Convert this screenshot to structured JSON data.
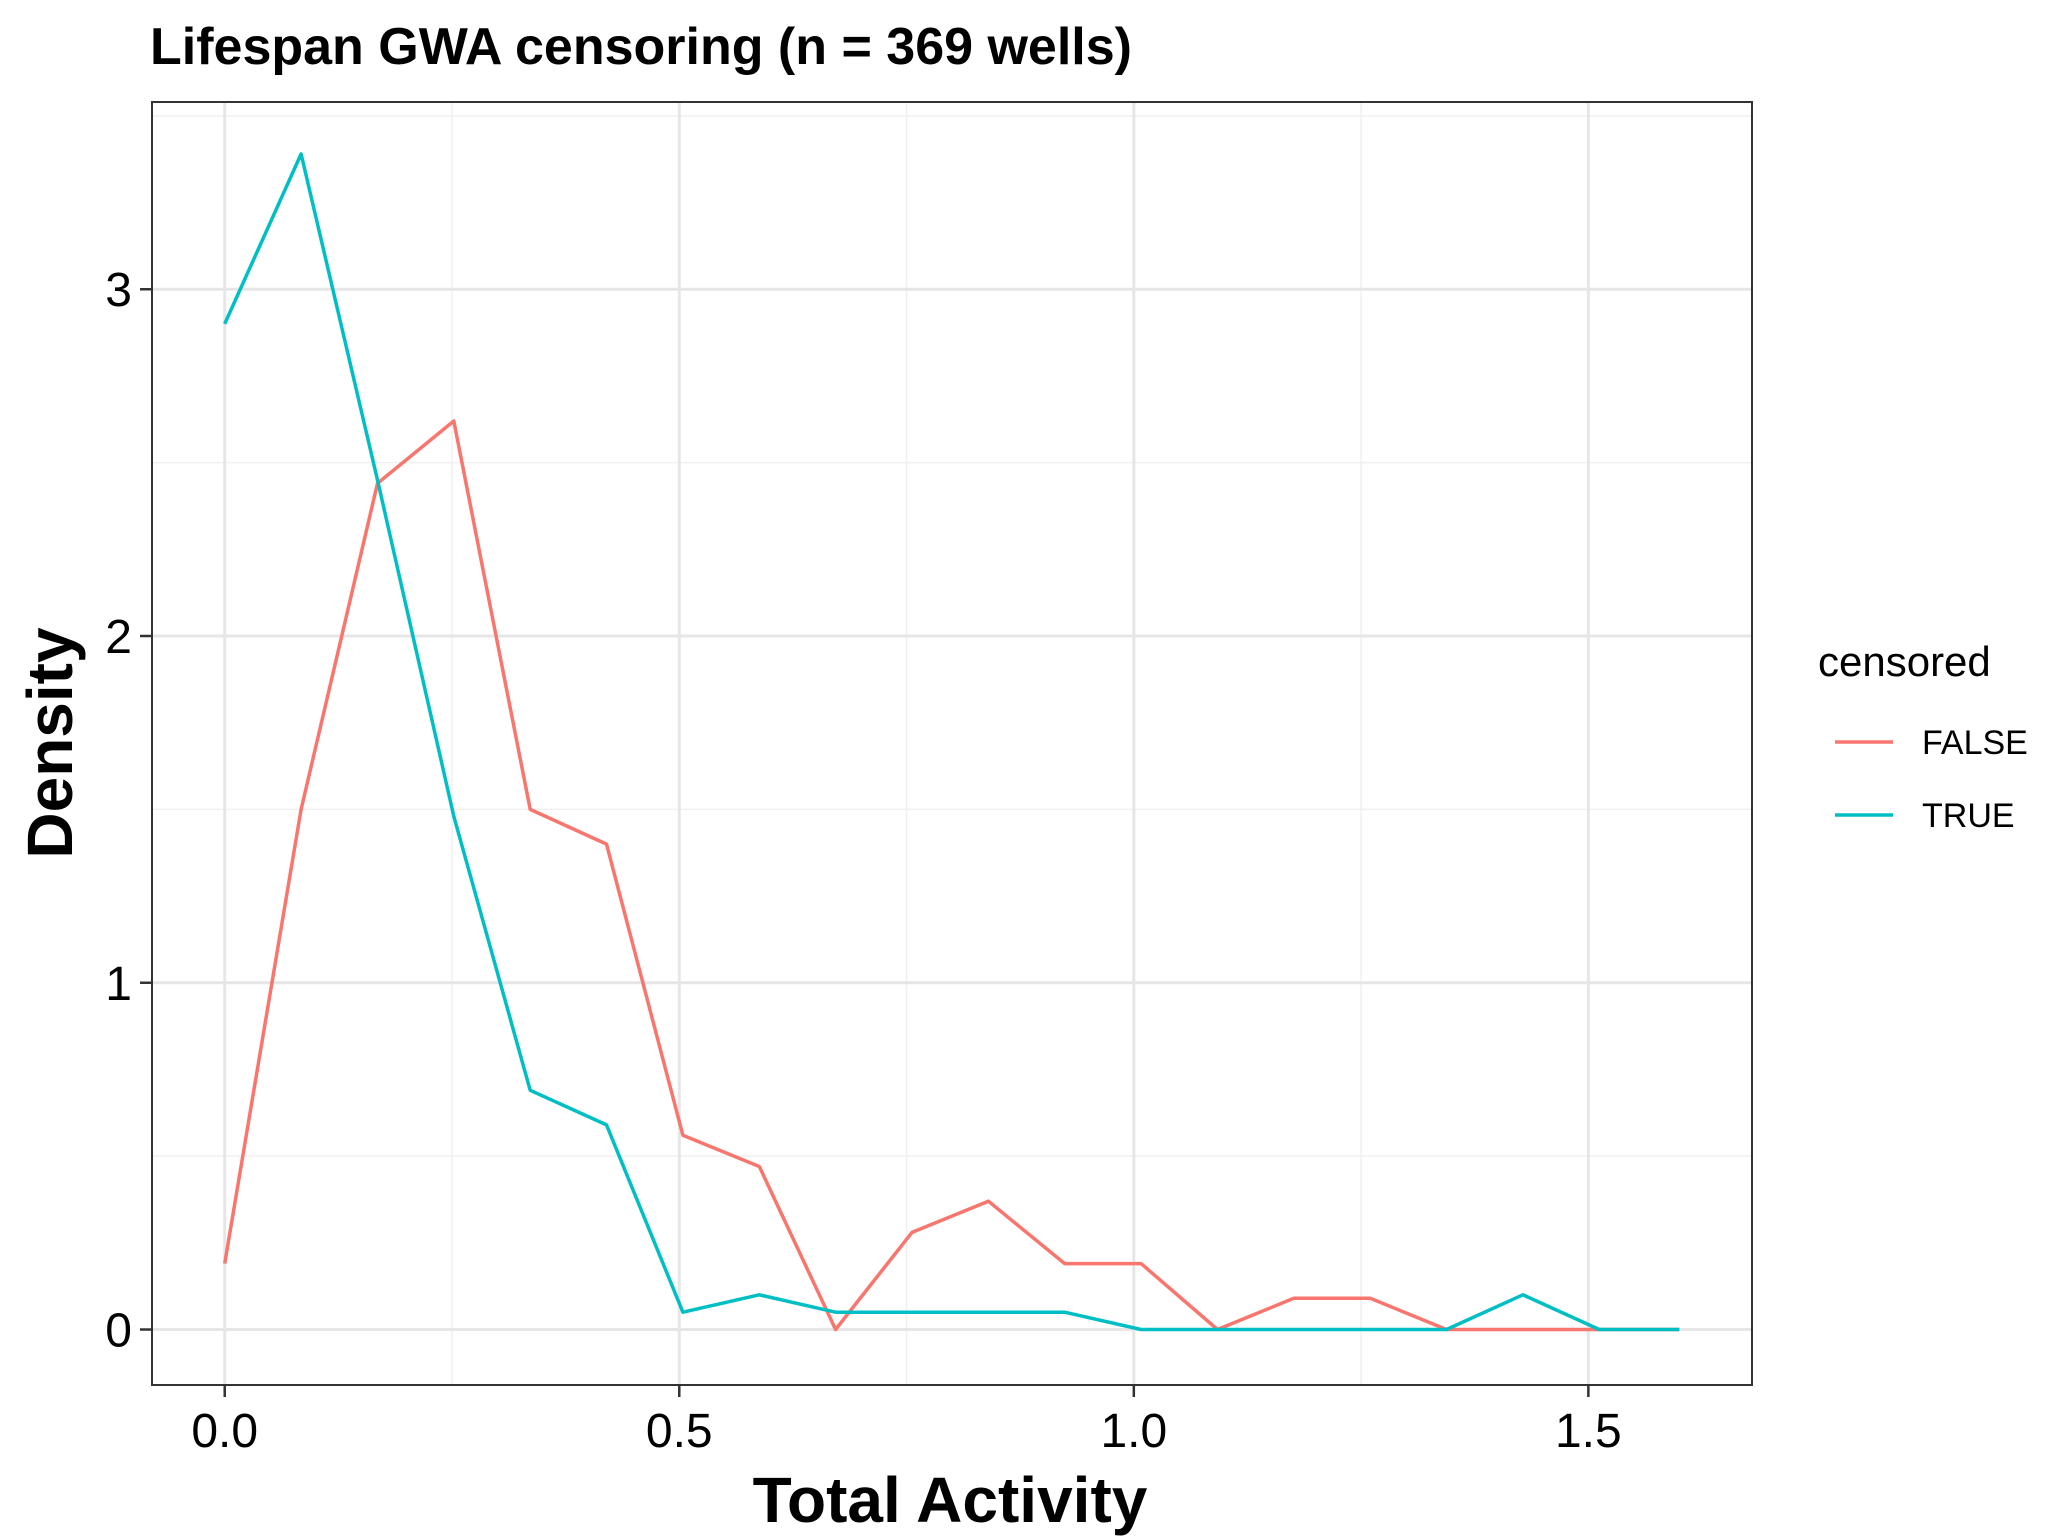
{
  "chart_data": {
    "type": "line",
    "title": "Lifespan GWA censoring (n = 369 wells)",
    "xlabel": "Total Activity",
    "ylabel": "Density",
    "xlim": [
      -0.08,
      1.68
    ],
    "ylim": [
      -0.16,
      3.54
    ],
    "x_ticks": [
      0.0,
      0.5,
      1.0,
      1.5
    ],
    "x_tick_labels": [
      "0.0",
      "0.5",
      "1.0",
      "1.5"
    ],
    "y_ticks": [
      0,
      1,
      2,
      3
    ],
    "y_tick_labels": [
      "0",
      "1",
      "2",
      "3"
    ],
    "grid": true,
    "legend": {
      "title": "censored",
      "position": "right"
    },
    "x": [
      0.0,
      0.084,
      0.168,
      0.252,
      0.336,
      0.42,
      0.504,
      0.588,
      0.672,
      0.756,
      0.84,
      0.924,
      1.008,
      1.092,
      1.176,
      1.26,
      1.344,
      1.428,
      1.512,
      1.6
    ],
    "series": [
      {
        "name": "FALSE",
        "color": "#F8766D",
        "values": [
          0.19,
          1.5,
          2.44,
          2.62,
          1.5,
          1.4,
          0.56,
          0.47,
          0.0,
          0.28,
          0.37,
          0.19,
          0.19,
          0.0,
          0.09,
          0.09,
          0.0,
          0.0,
          0.0,
          0.0
        ]
      },
      {
        "name": "TRUE",
        "color": "#00BFC4",
        "values": [
          2.9,
          3.39,
          2.45,
          1.48,
          0.69,
          0.59,
          0.05,
          0.1,
          0.05,
          0.05,
          0.05,
          0.05,
          0.0,
          0.0,
          0.0,
          0.0,
          0.0,
          0.1,
          0.0,
          0.0
        ]
      }
    ]
  }
}
